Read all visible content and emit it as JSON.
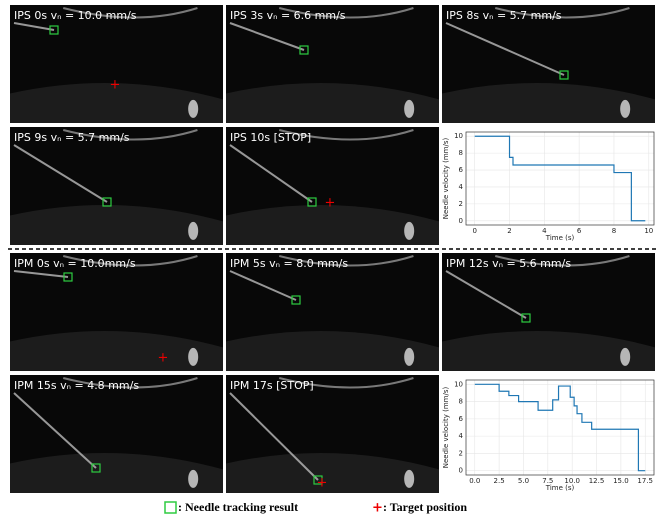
{
  "panels": [
    {
      "label": "IPS 0s vₙ = 10.0 mm/s"
    },
    {
      "label": "IPS 3s vₙ = 6.6 mm/s"
    },
    {
      "label": "IPS 8s vₙ = 5.7 mm/s"
    },
    {
      "label": "IPS 9s vₙ = 5.7 mm/s"
    },
    {
      "label": "IPS 10s [STOP]"
    },
    {
      "label": "IPM 0s vₙ = 10.0mm/s"
    },
    {
      "label": "IPM 5s vₙ = 8.0 mm/s"
    },
    {
      "label": "IPM 12s vₙ = 5.6 mm/s"
    },
    {
      "label": "IPM 15s vₙ = 4.8 mm/s"
    },
    {
      "label": "IPM 17s [STOP]"
    }
  ],
  "chart_data": [
    {
      "type": "line",
      "x_label": "Time (s)",
      "y_label": "Needle velocity (mm/s)",
      "x": [
        0,
        2,
        2,
        2.2,
        2.2,
        8,
        8,
        9,
        9,
        9.8
      ],
      "series": [
        {
          "color": "#1f77b4",
          "values": [
            10,
            10,
            7.5,
            7.5,
            6.6,
            6.6,
            5.7,
            5.7,
            0,
            0
          ]
        }
      ],
      "xlim": [
        -0.5,
        10.3
      ],
      "ylim": [
        -0.5,
        10.5
      ],
      "xticks": [
        0,
        2,
        4,
        6,
        8,
        10
      ],
      "yticks": [
        0,
        2,
        4,
        6,
        8,
        10
      ],
      "grid": true
    },
    {
      "type": "line",
      "x_label": "Time (s)",
      "y_label": "Needle velocity (mm/s)",
      "x": [
        0,
        2.5,
        2.5,
        3.5,
        3.5,
        4.5,
        4.5,
        6.5,
        6.5,
        8,
        8,
        8.6,
        8.6,
        9.8,
        9.8,
        10.2,
        10.2,
        10.5,
        10.5,
        11,
        11,
        12,
        12,
        16.8,
        16.8,
        17.5
      ],
      "series": [
        {
          "color": "#1f77b4",
          "values": [
            10,
            10,
            9.2,
            9.2,
            8.7,
            8.7,
            8,
            8,
            7,
            7,
            8.2,
            8.2,
            9.8,
            9.8,
            8.5,
            8.5,
            7.5,
            7.5,
            6.6,
            6.6,
            5.6,
            5.6,
            4.8,
            4.8,
            0,
            0
          ]
        }
      ],
      "xlim": [
        -0.9,
        18.4
      ],
      "ylim": [
        -0.5,
        10.5
      ],
      "xticks": [
        {
          "value": 0,
          "label": "0.0"
        },
        {
          "value": 2.5,
          "label": "2.5"
        },
        {
          "value": 5,
          "label": "5.0"
        },
        {
          "value": 7.5,
          "label": "7.5"
        },
        {
          "value": 10,
          "label": "10.0"
        },
        {
          "value": 12.5,
          "label": "12.5"
        },
        {
          "value": 15,
          "label": "15.0"
        },
        {
          "value": 17.5,
          "label": "17.5"
        }
      ],
      "yticks": [
        0,
        2,
        4,
        6,
        8,
        10
      ],
      "grid": true
    }
  ],
  "legend": {
    "tracking": ": Needle tracking result",
    "target": ": Target position"
  }
}
